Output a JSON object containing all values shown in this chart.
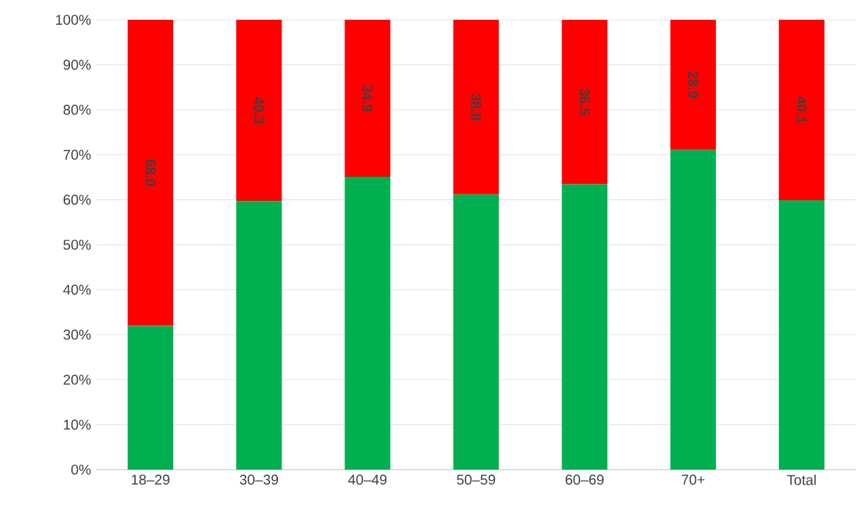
{
  "chart_data": {
    "type": "bar",
    "stacked": true,
    "categories": [
      "18–29",
      "30–39",
      "40–49",
      "50–59",
      "60–69",
      "70+",
      "Total"
    ],
    "series": [
      {
        "color": "#00b050",
        "values": [
          32.0,
          59.7,
          65.1,
          61.2,
          63.5,
          71.1,
          59.9
        ]
      },
      {
        "color": "#ff0000",
        "values": [
          68.0,
          40.3,
          34.9,
          38.8,
          36.5,
          28.9,
          40.1
        ],
        "value_labels": [
          "68.0",
          "40.3",
          "34.9",
          "38.8",
          "36.5",
          "28.9",
          "40.1"
        ]
      }
    ],
    "ylim": [
      0,
      100
    ],
    "yticks": [
      {
        "value": 0,
        "label": "0%"
      },
      {
        "value": 10,
        "label": "10%"
      },
      {
        "value": 20,
        "label": "20%"
      },
      {
        "value": 30,
        "label": "30%"
      },
      {
        "value": 40,
        "label": "40%"
      },
      {
        "value": 50,
        "label": "50%"
      },
      {
        "value": 60,
        "label": "60%"
      },
      {
        "value": 70,
        "label": "70%"
      },
      {
        "value": 80,
        "label": "80%"
      },
      {
        "value": 90,
        "label": "90%"
      },
      {
        "value": 100,
        "label": "100%"
      }
    ],
    "grid": "y"
  }
}
